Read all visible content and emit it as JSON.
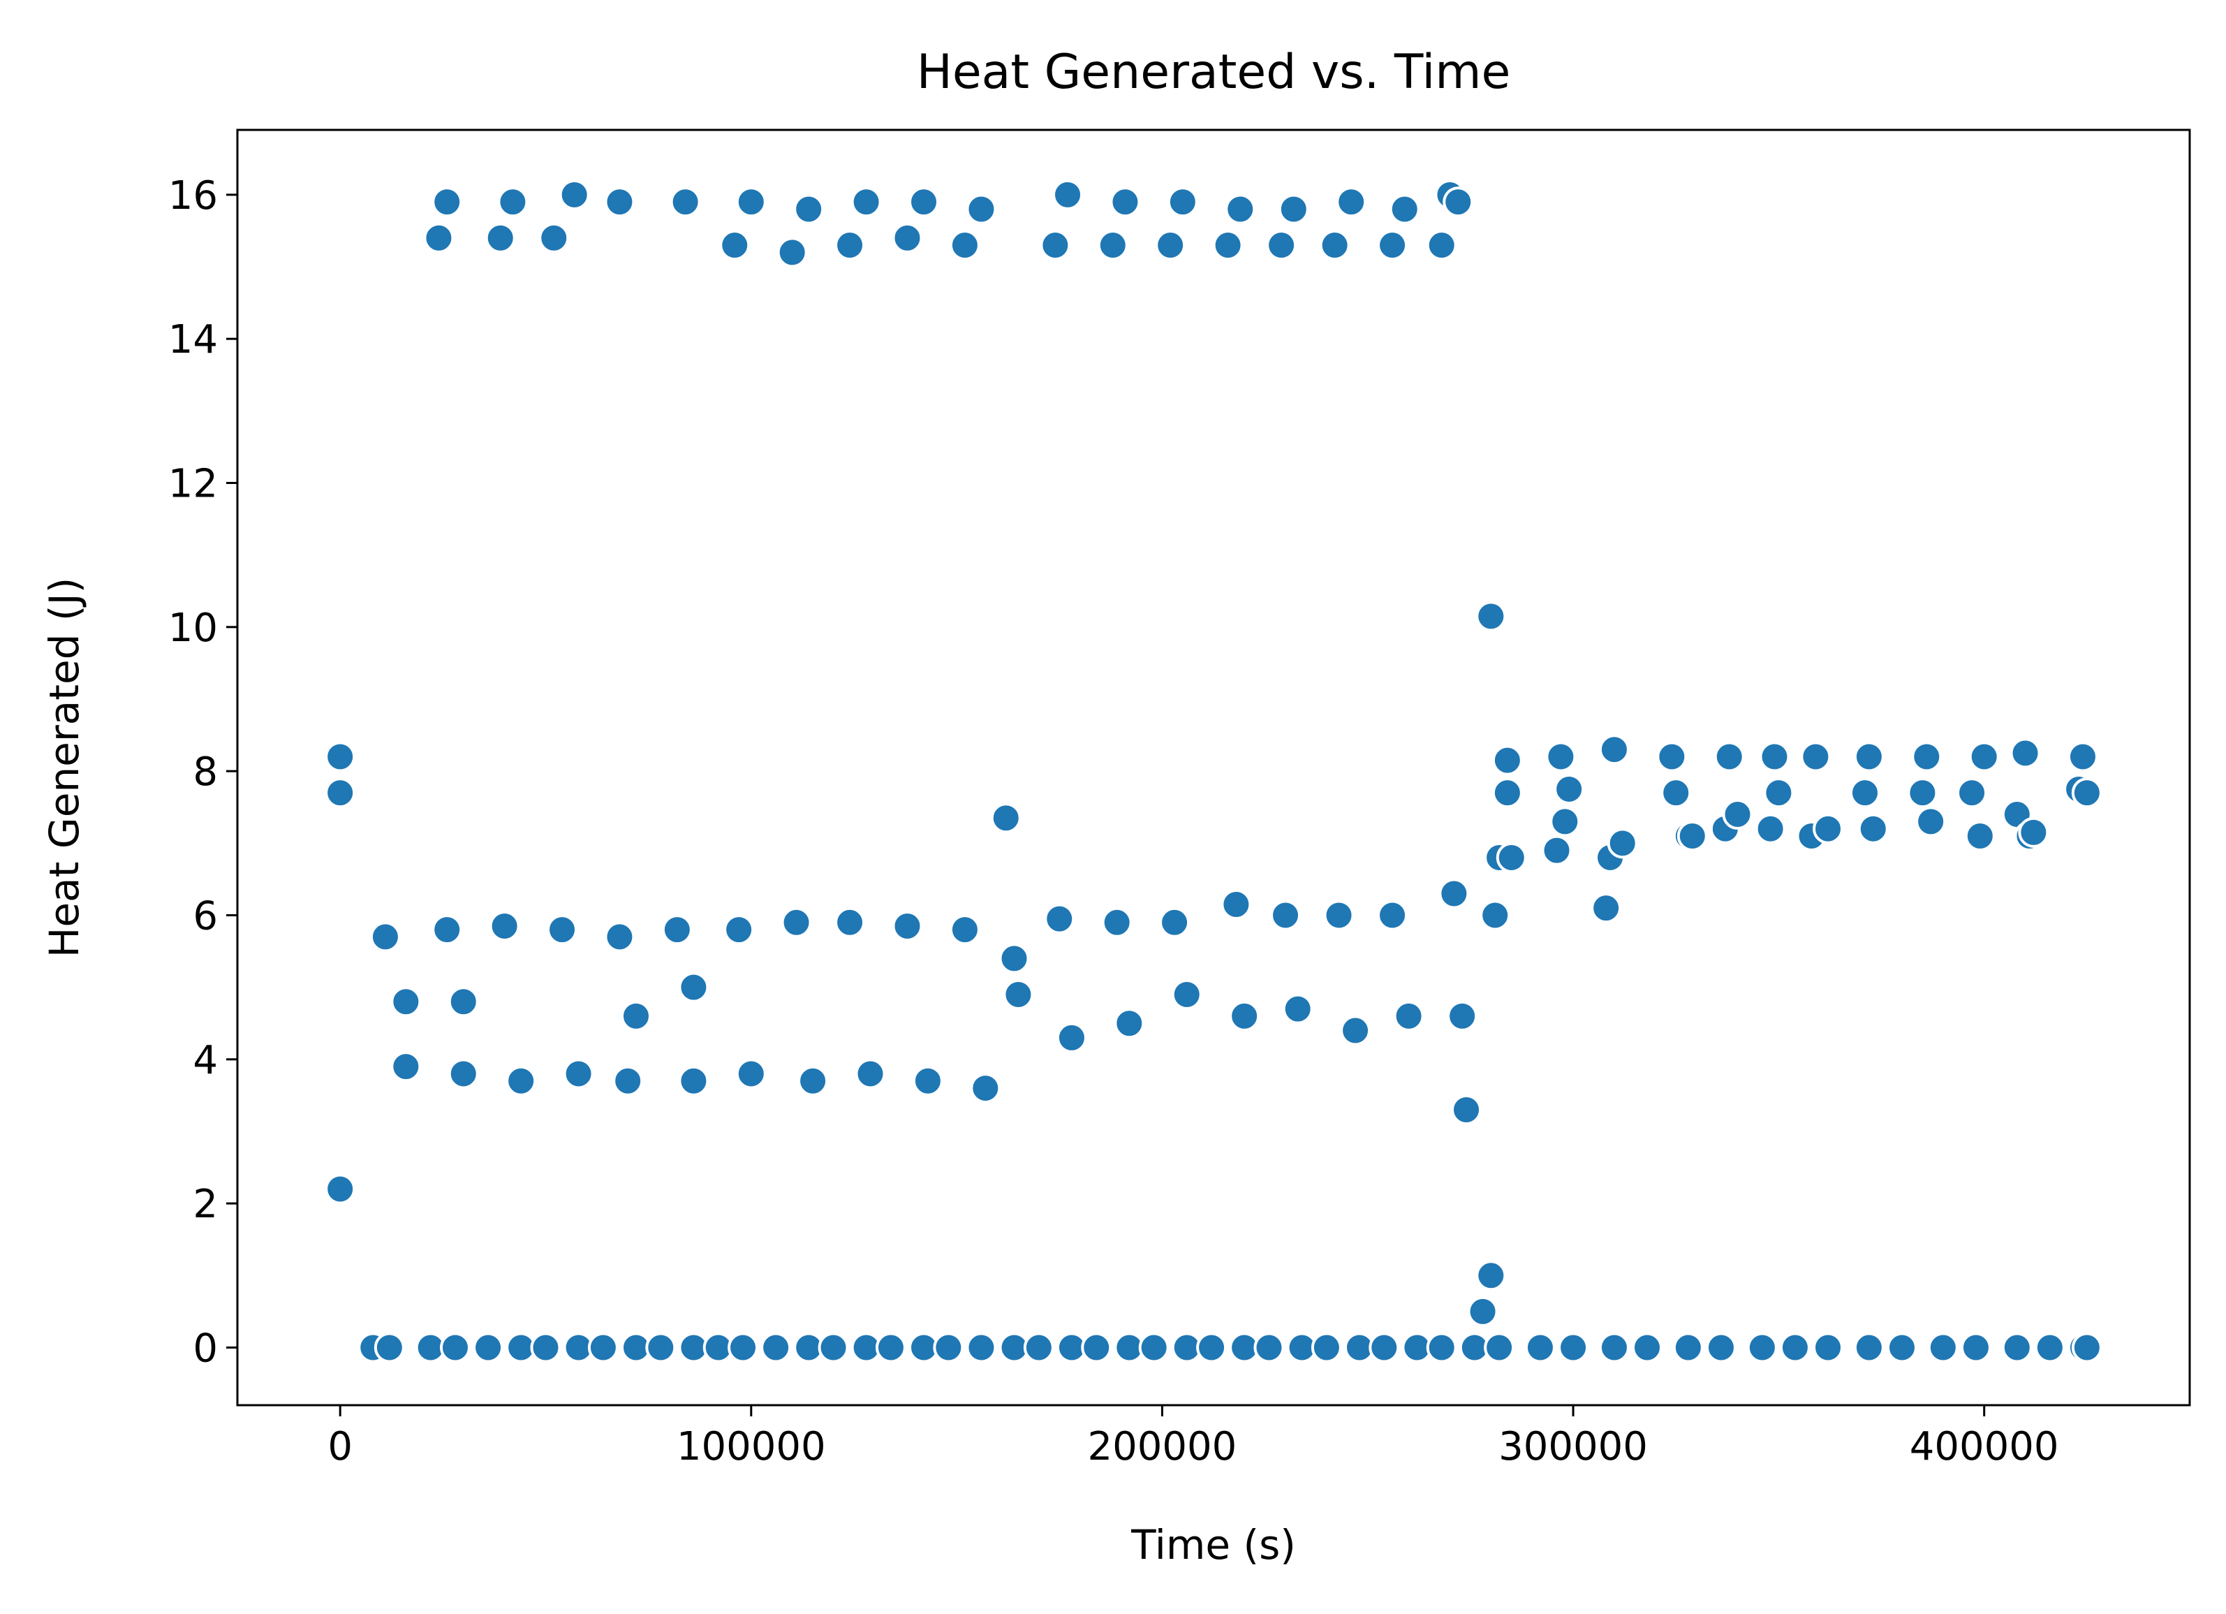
{
  "chart_data": {
    "type": "scatter",
    "title": "Heat Generated vs. Time",
    "xlabel": "Time (s)",
    "ylabel": "Heat Generated (J)",
    "xlim": [
      -25000,
      450000
    ],
    "ylim": [
      -0.8,
      16.9
    ],
    "xticks": [
      0,
      100000,
      200000,
      300000,
      400000
    ],
    "xtick_labels": [
      "0",
      "100000",
      "200000",
      "300000",
      "400000"
    ],
    "yticks": [
      0,
      2,
      4,
      6,
      8,
      10,
      12,
      14,
      16
    ],
    "ytick_labels": [
      "0",
      "2",
      "4",
      "6",
      "8",
      "10",
      "12",
      "14",
      "16"
    ],
    "grid": false,
    "marker_color": "#1f77b4",
    "marker_edge_color": "#ffffff",
    "series": [
      {
        "name": "",
        "x": [
          0,
          0,
          11000,
          16000,
          16000,
          24000,
          26000,
          26000,
          30000,
          30000,
          39000,
          40000,
          42000,
          44000,
          52000,
          54000,
          57000,
          58000,
          68000,
          68000,
          70000,
          72000,
          82000,
          84000,
          86000,
          86000,
          96000,
          97000,
          100000,
          100000,
          110000,
          111000,
          114000,
          115000,
          124000,
          124000,
          128000,
          129000,
          138000,
          138000,
          142000,
          143000,
          152000,
          152000,
          156000,
          157000,
          162000,
          164000,
          165000,
          174000,
          175000,
          177000,
          178000,
          188000,
          189000,
          191000,
          192000,
          202000,
          203000,
          205000,
          206000,
          216000,
          218000,
          219000,
          220000,
          229000,
          230000,
          232000,
          233000,
          242000,
          243000,
          246000,
          247000,
          256000,
          256000,
          259000,
          260000,
          268000,
          270000,
          271000,
          272000,
          273000,
          274000,
          278000,
          280000,
          280000,
          281000,
          282000,
          284000,
          284000,
          285000,
          296000,
          297000,
          298000,
          299000,
          308000,
          309000,
          310000,
          312000,
          324000,
          325000,
          328000,
          329000,
          337000,
          338000,
          340000,
          348000,
          349000,
          350000,
          358000,
          359000,
          362000,
          371000,
          372000,
          373000,
          385000,
          386000,
          387000,
          397000,
          399000,
          400000,
          408000,
          410000,
          411000,
          412000,
          423000,
          424000,
          425000,
          0,
          8000,
          12000,
          22000,
          28000,
          36000,
          44000,
          50000,
          58000,
          64000,
          72000,
          78000,
          86000,
          92000,
          98000,
          106000,
          114000,
          120000,
          128000,
          134000,
          142000,
          148000,
          156000,
          164000,
          170000,
          178000,
          184000,
          192000,
          198000,
          206000,
          212000,
          220000,
          226000,
          234000,
          240000,
          248000,
          254000,
          262000,
          268000,
          276000,
          282000,
          292000,
          300000,
          310000,
          318000,
          328000,
          336000,
          346000,
          354000,
          362000,
          372000,
          380000,
          390000,
          398000,
          408000,
          416000,
          424000,
          425000
        ],
        "y": [
          8.2,
          2.2,
          5.7,
          3.9,
          4.8,
          15.4,
          5.8,
          15.9,
          3.8,
          4.8,
          15.4,
          5.85,
          15.9,
          3.7,
          15.4,
          5.8,
          16.0,
          3.8,
          5.7,
          15.9,
          3.7,
          4.6,
          5.8,
          15.9,
          3.7,
          5.0,
          15.3,
          5.8,
          15.9,
          3.8,
          15.2,
          5.9,
          15.8,
          3.7,
          15.3,
          5.9,
          15.9,
          3.8,
          15.4,
          5.85,
          15.9,
          3.7,
          15.3,
          5.8,
          15.8,
          3.6,
          7.35,
          5.4,
          4.9,
          15.3,
          5.95,
          16.0,
          4.3,
          15.3,
          5.9,
          15.9,
          4.5,
          15.3,
          5.9,
          15.9,
          4.9,
          15.3,
          6.15,
          15.8,
          4.6,
          15.3,
          6.0,
          15.8,
          4.7,
          15.3,
          6.0,
          15.9,
          4.4,
          15.3,
          6.0,
          15.8,
          4.6,
          15.3,
          16.0,
          6.3,
          15.9,
          4.6,
          3.3,
          0.5,
          1.0,
          10.15,
          6.0,
          6.8,
          8.15,
          7.7,
          6.8,
          6.9,
          8.2,
          7.3,
          7.75,
          6.1,
          6.8,
          8.3,
          7.0,
          8.2,
          7.7,
          7.1,
          7.1,
          7.2,
          8.2,
          7.4,
          7.2,
          8.2,
          7.7,
          7.1,
          8.2,
          7.2,
          7.7,
          8.2,
          7.2,
          7.7,
          8.2,
          7.3,
          7.7,
          7.1,
          8.2,
          7.4,
          8.25,
          7.1,
          7.15,
          7.75,
          8.2,
          7.7,
          7.7,
          0,
          0,
          0,
          0,
          0,
          0,
          0,
          0,
          0,
          0,
          0,
          0,
          0,
          0,
          0,
          0,
          0,
          0,
          0,
          0,
          0,
          0,
          0,
          0,
          0,
          0,
          0,
          0,
          0,
          0,
          0,
          0,
          0,
          0,
          0,
          0,
          0,
          0,
          0,
          0,
          0,
          0,
          0,
          0,
          0,
          0,
          0,
          0,
          0,
          0,
          0,
          0,
          0,
          0,
          0,
          0,
          0
        ]
      }
    ]
  }
}
